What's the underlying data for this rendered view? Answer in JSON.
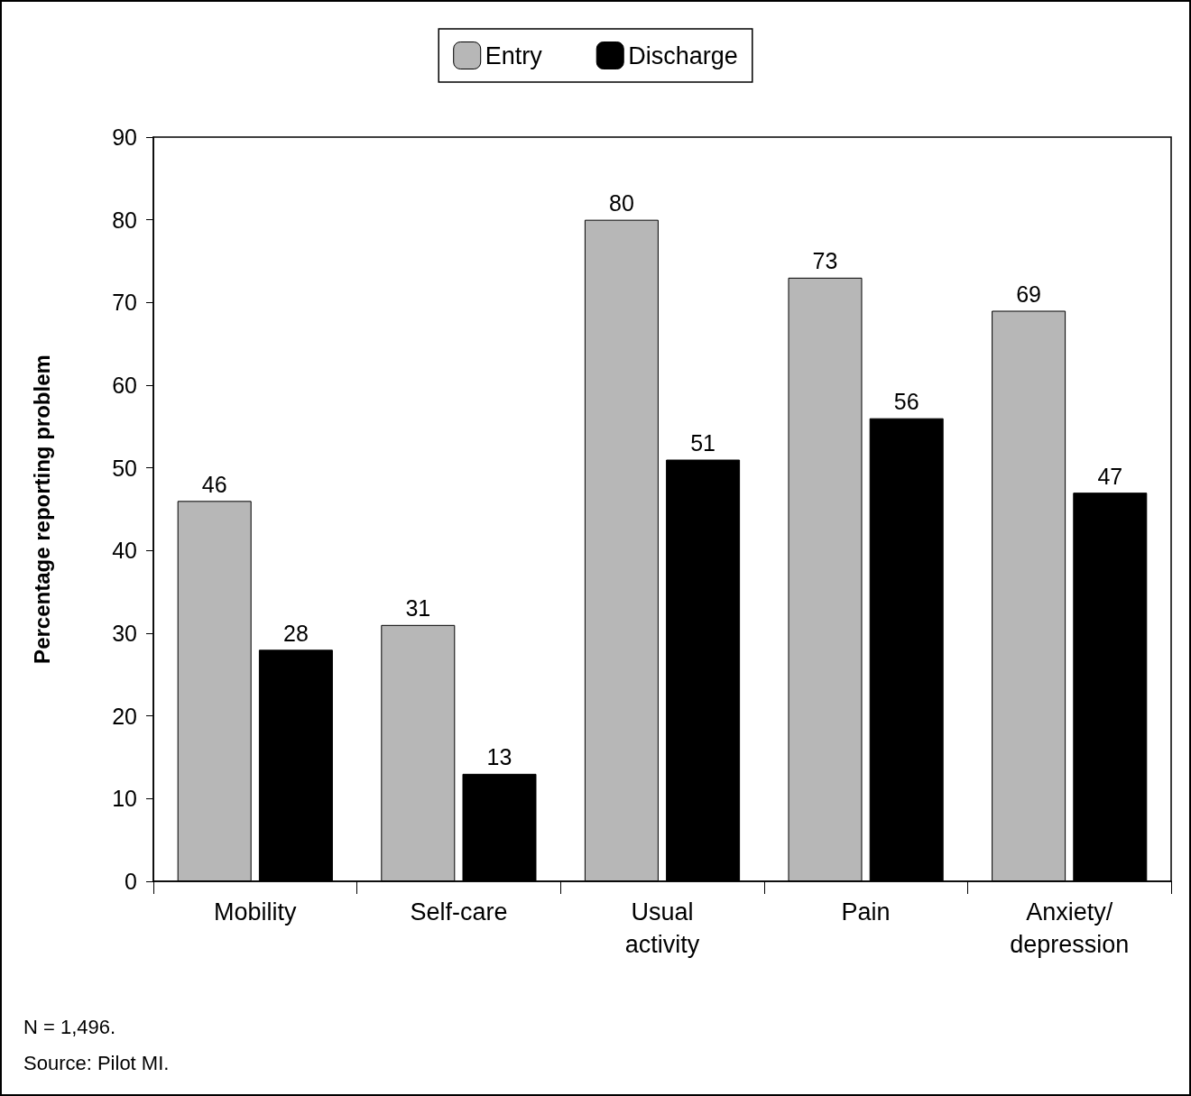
{
  "chart_data": {
    "type": "bar",
    "ylabel": "Percentage reporting problem",
    "categories": [
      "Mobility",
      "Self-care",
      "Usual\nactivity",
      "Pain",
      "Anxiety/\ndepression"
    ],
    "series": [
      {
        "name": "Entry",
        "color": "#b7b7b7",
        "values": [
          46,
          31,
          80,
          73,
          69
        ]
      },
      {
        "name": "Discharge",
        "color": "#000000",
        "values": [
          28,
          13,
          51,
          56,
          47
        ]
      }
    ],
    "ylim": [
      0,
      90
    ],
    "yticks": [
      0,
      10,
      20,
      30,
      40,
      50,
      60,
      70,
      80,
      90
    ],
    "grid": false,
    "legend": "top",
    "data_labels": true,
    "annotations": [
      "N = 1,496.",
      "Source: Pilot MI."
    ]
  }
}
